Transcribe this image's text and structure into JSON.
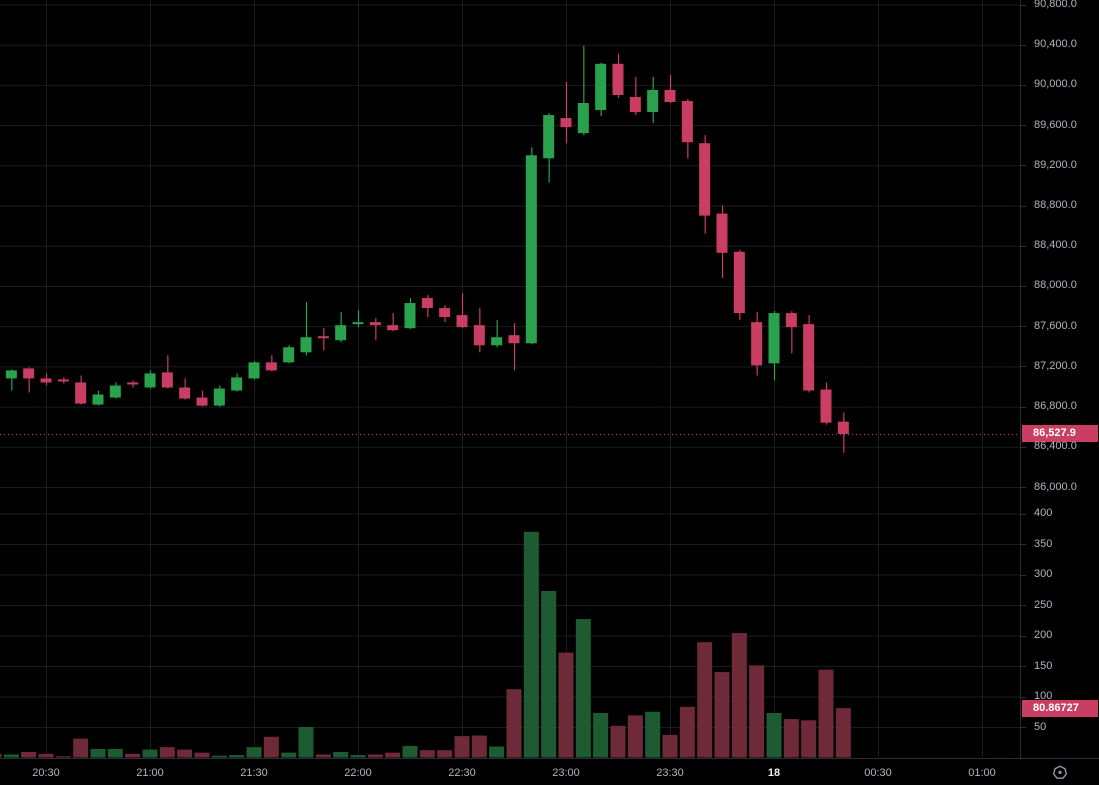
{
  "colors": {
    "background": "#000000",
    "up": "#2aa24d",
    "down": "#cb3e63",
    "volume_up": "#1d5c32",
    "volume_down": "#6e2a39",
    "grid": "#181c23",
    "axis_border": "#2a2e39",
    "axis_text": "#b2b5be",
    "axis_text_bold": "#eceef2",
    "tag_bg": "#cb3e63",
    "tag_text": "#ffffff"
  },
  "tags": {
    "price": "86,527.9",
    "volume": "80.86727"
  },
  "time_axis": {
    "labels": [
      {
        "text": "20:30",
        "bold": false
      },
      {
        "text": "21:00",
        "bold": false
      },
      {
        "text": "21:30",
        "bold": false
      },
      {
        "text": "22:00",
        "bold": false
      },
      {
        "text": "22:30",
        "bold": false
      },
      {
        "text": "23:00",
        "bold": false
      },
      {
        "text": "23:30",
        "bold": false
      },
      {
        "text": "18",
        "bold": true
      },
      {
        "text": "00:30",
        "bold": false
      },
      {
        "text": "01:00",
        "bold": false
      }
    ]
  },
  "chart_data": {
    "type": "candlestick",
    "subpanel": "volume-bar",
    "interval_minutes": 5,
    "grid": true,
    "legend_position": "none",
    "price_axis": {
      "top_value": 90800,
      "bottom_value": 86000,
      "tick_step": 400,
      "labels": [
        [
          "90,800.0",
          90800
        ],
        [
          "90,400.0",
          90400
        ],
        [
          "90,000.0",
          90000
        ],
        [
          "89,600.0",
          89600
        ],
        [
          "89,200.0",
          89200
        ],
        [
          "88,800.0",
          88800
        ],
        [
          "88,400.0",
          88400
        ],
        [
          "88,000.0",
          88000
        ],
        [
          "87,600.0",
          87600
        ],
        [
          "87,200.0",
          87200
        ],
        [
          "86,800.0",
          86800
        ],
        [
          "86,400.0",
          86400
        ],
        [
          "86,000.0",
          86000
        ]
      ]
    },
    "volume_axis": {
      "top_value": 400,
      "bottom_value": 0,
      "tick_step": 50,
      "labels": [
        [
          "400",
          400
        ],
        [
          "350",
          350
        ],
        [
          "300",
          300
        ],
        [
          "250",
          250
        ],
        [
          "200",
          200
        ],
        [
          "150",
          150
        ],
        [
          "100",
          100
        ],
        [
          "50",
          50
        ]
      ]
    },
    "last_price": 86527.9,
    "last_volume": 80.86727,
    "candle_columns": [
      "time",
      "open",
      "high",
      "low",
      "close",
      "volume"
    ],
    "candles": [
      [
        "20:15",
        87180,
        87200,
        87070,
        87080,
        6
      ],
      [
        "20:20",
        87080,
        87170,
        86960,
        87160,
        5
      ],
      [
        "20:25",
        87180,
        87190,
        86940,
        87080,
        9
      ],
      [
        "20:30",
        87080,
        87130,
        87010,
        87040,
        6
      ],
      [
        "20:35",
        87070,
        87090,
        87030,
        87050,
        2
      ],
      [
        "20:40",
        87040,
        87110,
        86820,
        86830,
        31
      ],
      [
        "20:45",
        86820,
        86960,
        86810,
        86920,
        14
      ],
      [
        "20:50",
        86890,
        87040,
        86880,
        87010,
        14
      ],
      [
        "20:55",
        87040,
        87060,
        86990,
        87020,
        6
      ],
      [
        "21:00",
        86990,
        87160,
        86980,
        87130,
        13
      ],
      [
        "21:05",
        87140,
        87310,
        86980,
        86990,
        17
      ],
      [
        "21:10",
        86990,
        87080,
        86870,
        86880,
        13
      ],
      [
        "21:15",
        86890,
        86960,
        86800,
        86810,
        8
      ],
      [
        "21:20",
        86810,
        87010,
        86800,
        86980,
        3
      ],
      [
        "21:25",
        86960,
        87130,
        86950,
        87090,
        4
      ],
      [
        "21:30",
        87080,
        87250,
        87070,
        87240,
        17
      ],
      [
        "21:35",
        87240,
        87310,
        87150,
        87160,
        34
      ],
      [
        "21:40",
        87240,
        87410,
        87230,
        87390,
        8
      ],
      [
        "21:45",
        87340,
        87840,
        87310,
        87490,
        50
      ],
      [
        "21:50",
        87500,
        87580,
        87360,
        87480,
        5
      ],
      [
        "21:55",
        87460,
        87740,
        87440,
        87610,
        9
      ],
      [
        "22:00",
        87620,
        87760,
        87590,
        87640,
        4
      ],
      [
        "22:05",
        87640,
        87680,
        87460,
        87610,
        5
      ],
      [
        "22:10",
        87610,
        87730,
        87550,
        87560,
        8
      ],
      [
        "22:15",
        87580,
        87880,
        87570,
        87830,
        19
      ],
      [
        "22:20",
        87880,
        87910,
        87690,
        87780,
        12
      ],
      [
        "22:25",
        87780,
        87810,
        87640,
        87690,
        12
      ],
      [
        "22:30",
        87710,
        87930,
        87580,
        87590,
        35
      ],
      [
        "22:35",
        87610,
        87780,
        87340,
        87410,
        36
      ],
      [
        "22:40",
        87410,
        87660,
        87390,
        87490,
        18
      ],
      [
        "22:45",
        87510,
        87630,
        87160,
        87430,
        112
      ],
      [
        "22:50",
        87430,
        89380,
        87420,
        89300,
        370
      ],
      [
        "22:55",
        89270,
        89720,
        89030,
        89700,
        273
      ],
      [
        "23:00",
        89670,
        90030,
        89420,
        89580,
        172
      ],
      [
        "23:05",
        89520,
        90390,
        89500,
        89820,
        227
      ],
      [
        "23:10",
        89750,
        90220,
        89690,
        90210,
        73
      ],
      [
        "23:15",
        90210,
        90310,
        89870,
        89900,
        52
      ],
      [
        "23:20",
        89880,
        90080,
        89700,
        89730,
        69
      ],
      [
        "23:25",
        89730,
        90080,
        89620,
        89950,
        75
      ],
      [
        "23:30",
        89950,
        90100,
        89820,
        89830,
        37
      ],
      [
        "23:35",
        89840,
        89860,
        89270,
        89430,
        83
      ],
      [
        "23:40",
        89420,
        89500,
        88520,
        88700,
        189
      ],
      [
        "23:45",
        88720,
        88800,
        88080,
        88330,
        140
      ],
      [
        "23:50",
        88340,
        88360,
        87660,
        87730,
        204
      ],
      [
        "23:55",
        87640,
        87740,
        87110,
        87210,
        151
      ],
      [
        "00:00",
        87230,
        87750,
        87060,
        87730,
        73
      ],
      [
        "00:05",
        87730,
        87750,
        87330,
        87590,
        63
      ],
      [
        "00:10",
        87620,
        87710,
        86940,
        86960,
        61
      ],
      [
        "00:15",
        86970,
        87040,
        86620,
        86640,
        144
      ],
      [
        "00:20",
        86650,
        86740,
        86340,
        86527.9,
        80.86727
      ]
    ]
  }
}
